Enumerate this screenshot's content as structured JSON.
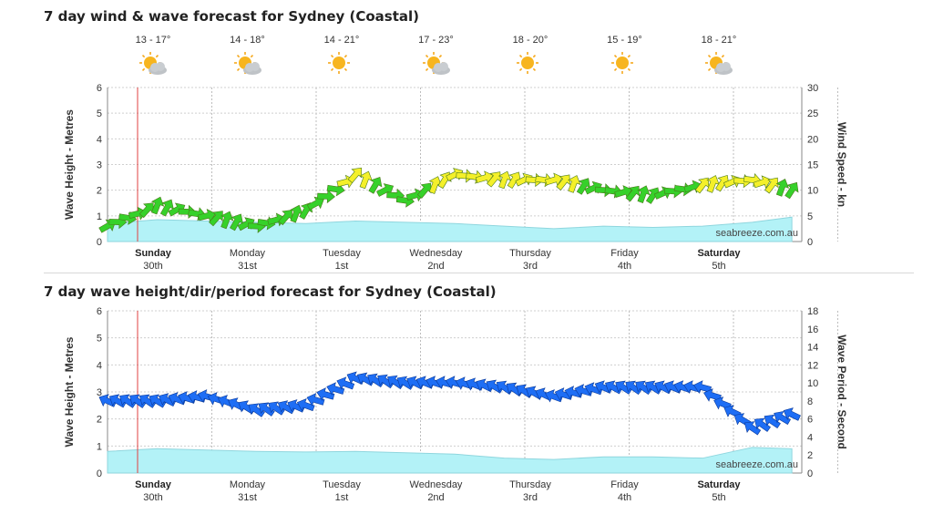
{
  "charts": {
    "wind": {
      "title": "7 day wind & wave forecast for Sydney (Coastal)"
    },
    "wave": {
      "title": "7 day wave height/dir/period forecast for Sydney (Coastal)"
    }
  },
  "watermark": "seabreeze.com.au",
  "colors": {
    "wave_fill": "#b3f2f7",
    "wind_green": "#36d12a",
    "wind_yellow": "#f4f02a",
    "wave_arrow": "#1e6ef5",
    "now_line": "#e04040"
  },
  "days": [
    {
      "day": "Sunday",
      "date": "30th",
      "bold": true,
      "temp": "13 - 17°",
      "icon": "partly-cloudy-icon"
    },
    {
      "day": "Monday",
      "date": "31st",
      "bold": false,
      "temp": "14 - 18°",
      "icon": "partly-cloudy-icon"
    },
    {
      "day": "Tuesday",
      "date": "1st",
      "bold": false,
      "temp": "14 - 21°",
      "icon": "sun-icon"
    },
    {
      "day": "Wednesday",
      "date": "2nd",
      "bold": false,
      "temp": "17 - 23°",
      "icon": "partly-cloudy-icon"
    },
    {
      "day": "Thursday",
      "date": "3rd",
      "bold": false,
      "temp": "18 - 20°",
      "icon": "sun-icon"
    },
    {
      "day": "Friday",
      "date": "4th",
      "bold": false,
      "temp": "15 - 19°",
      "icon": "sun-icon"
    },
    {
      "day": "Saturday",
      "date": "5th",
      "bold": true,
      "temp": "18 - 21°",
      "icon": "partly-cloudy-icon"
    }
  ],
  "chart_data": [
    {
      "type": "line",
      "title": "7 day wind & wave forecast for Sydney (Coastal)",
      "ylabel": "Wave Height - Metres",
      "y2label": "Wind Speed - kn",
      "ylim": [
        0,
        6
      ],
      "y2lim": [
        0,
        30
      ],
      "yticks": [
        0,
        1,
        2,
        3,
        4,
        5,
        6
      ],
      "y2ticks": [
        0,
        5,
        10,
        15,
        20,
        25,
        30
      ],
      "x": [
        0,
        0.5,
        1,
        1.5,
        2,
        2.5,
        3,
        3.5,
        4,
        4.5,
        5,
        5.5,
        6,
        6.5,
        6.9
      ],
      "series": [
        {
          "name": "Wave Height",
          "kind": "area",
          "values": [
            0.7,
            0.85,
            0.8,
            0.75,
            0.7,
            0.8,
            0.75,
            0.7,
            0.6,
            0.5,
            0.6,
            0.55,
            0.6,
            0.75,
            0.95
          ]
        },
        {
          "name": "Wind Speed",
          "kind": "arrows",
          "values": [
            3,
            7,
            5,
            3,
            6,
            13,
            8,
            13,
            12,
            12,
            10,
            9,
            11,
            12,
            10
          ]
        }
      ],
      "grid": true
    },
    {
      "type": "scatter",
      "title": "7 day wave height/dir/period forecast for Sydney (Coastal)",
      "ylabel": "Wave Height - Metres",
      "y2label": "Wave Period - Second",
      "ylim": [
        0,
        6
      ],
      "y2lim": [
        0,
        18
      ],
      "yticks": [
        0,
        1,
        2,
        3,
        4,
        5,
        6
      ],
      "y2ticks": [
        0,
        2,
        4,
        6,
        8,
        10,
        12,
        14,
        16,
        18
      ],
      "x": [
        0,
        0.5,
        1,
        1.5,
        2,
        2.5,
        3,
        3.5,
        4,
        4.5,
        5,
        5.5,
        6,
        6.5,
        6.9
      ],
      "series": [
        {
          "name": "Wave Height",
          "kind": "area",
          "values": [
            0.8,
            0.9,
            0.85,
            0.8,
            0.78,
            0.8,
            0.75,
            0.7,
            0.55,
            0.5,
            0.6,
            0.6,
            0.55,
            0.95,
            0.9
          ]
        },
        {
          "name": "Wave Period",
          "kind": "arrows",
          "values": [
            8,
            8,
            8.5,
            7,
            7.5,
            10.5,
            10,
            10,
            9.5,
            8.5,
            9.5,
            9.5,
            9.5,
            5,
            6.5
          ]
        }
      ],
      "grid": true
    }
  ]
}
